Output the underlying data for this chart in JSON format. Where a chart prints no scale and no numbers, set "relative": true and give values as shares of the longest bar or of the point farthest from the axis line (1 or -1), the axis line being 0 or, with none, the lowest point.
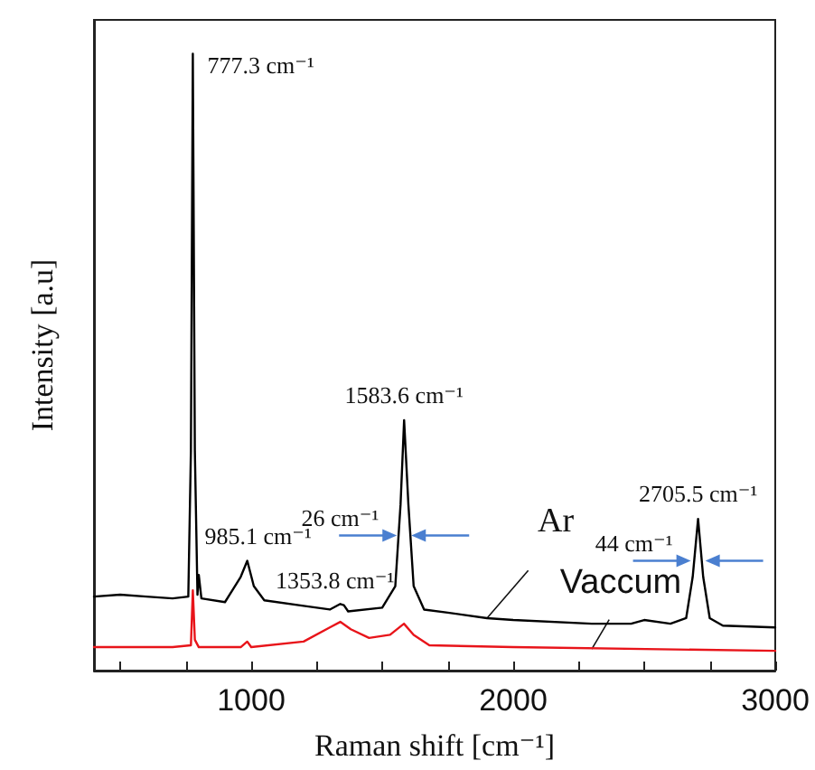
{
  "chart_data": {
    "type": "line",
    "relative": true,
    "xlabel": "Raman shift [cm⁻¹]",
    "ylabel": "Intensity [a.u]",
    "xlim": [
      400,
      3000
    ],
    "xticks": [
      {
        "value": 500,
        "label": null
      },
      {
        "value": 750,
        "label": null
      },
      1000,
      {
        "value": 1250,
        "label": null
      },
      {
        "value": 1500,
        "label": null
      },
      {
        "value": 1750,
        "label": null
      },
      2000,
      {
        "value": 2250,
        "label": null
      },
      {
        "value": 2500,
        "label": null
      },
      {
        "value": 2750,
        "label": null
      },
      3000
    ],
    "grid": false,
    "legend": false,
    "marker": "none",
    "line_style": "solid",
    "series": [
      {
        "name": "Ar",
        "color": "#000000",
        "x": [
          400,
          500,
          600,
          700,
          760,
          770,
          777.3,
          785,
          795,
          800,
          810,
          900,
          960,
          985.1,
          1010,
          1050,
          1200,
          1300,
          1340,
          1353.8,
          1370,
          1500,
          1550,
          1570,
          1583.6,
          1600,
          1620,
          1660,
          1750,
          1900,
          2000,
          2300,
          2450,
          2500,
          2600,
          2660,
          2685,
          2705.5,
          2725,
          2750,
          2800,
          3000
        ],
        "values": [
          0.12,
          0.123,
          0.12,
          0.117,
          0.12,
          0.357,
          1,
          0.357,
          0.123,
          0.155,
          0.117,
          0.111,
          0.152,
          0.178,
          0.137,
          0.114,
          0.105,
          0.099,
          0.108,
          0.106,
          0.096,
          0.102,
          0.137,
          0.269,
          0.406,
          0.269,
          0.137,
          0.099,
          0.094,
          0.085,
          0.082,
          0.076,
          0.076,
          0.082,
          0.076,
          0.085,
          0.152,
          0.246,
          0.152,
          0.085,
          0.073,
          0.07
        ]
      },
      {
        "name": "Vaccum",
        "color": "#e8141a",
        "x": [
          400,
          700,
          770,
          777.3,
          785,
          800,
          960,
          985,
          1000,
          1200,
          1300,
          1340,
          1380,
          1450,
          1530,
          1583,
          1620,
          1680,
          2000,
          3000
        ],
        "values": [
          0.038,
          0.038,
          0.041,
          0.13,
          0.05,
          0.038,
          0.038,
          0.047,
          0.038,
          0.047,
          0.07,
          0.079,
          0.067,
          0.053,
          0.058,
          0.076,
          0.058,
          0.041,
          0.038,
          0.032
        ]
      }
    ],
    "annotations": [
      {
        "text": "777.3 cm⁻¹",
        "x": 777.3,
        "y": 1
      },
      {
        "text": "985.1 cm⁻¹",
        "x": 985.1,
        "y": 0.178
      },
      {
        "text": "1353.8 cm⁻¹",
        "x": 1353.8,
        "y": 0.106
      },
      {
        "text": "1583.6 cm⁻¹",
        "x": 1583.6,
        "y": 0.406
      },
      {
        "text": "2705.5 cm⁻¹",
        "x": 2705.5,
        "y": 0.246
      },
      {
        "text": "26 cm⁻¹",
        "x": 1583.6,
        "y": 0.219
      },
      {
        "text": "44 cm⁻¹",
        "x": 2705.5,
        "y": 0.178
      }
    ]
  }
}
